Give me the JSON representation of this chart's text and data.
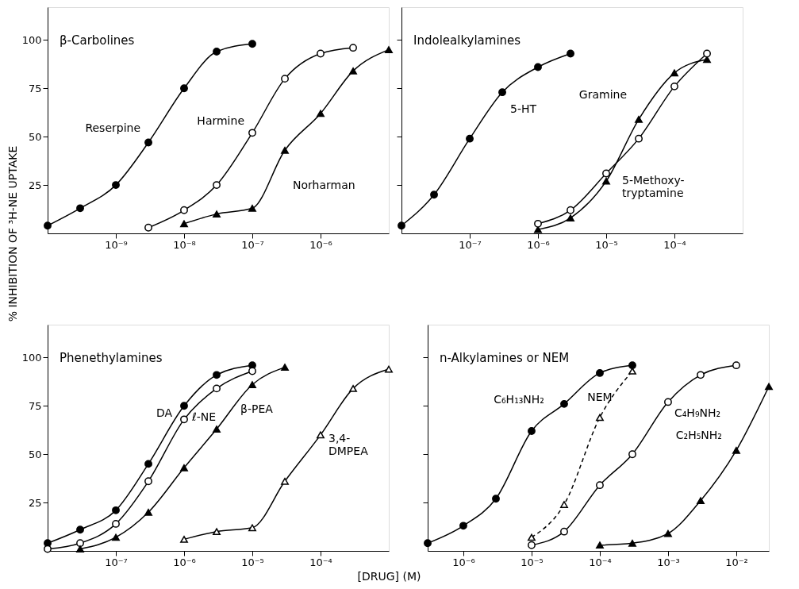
{
  "chart_data": [
    {
      "type": "line",
      "title": "β-Carbolines",
      "ylabel": "% INHIBITION OF ³H-NE UPTAKE",
      "log": "x",
      "xlim": [
        1e-10,
        1e-05
      ],
      "ylim": [
        0,
        117
      ],
      "xticks": [
        {
          "value": 1e-09,
          "label": "10⁻⁹"
        },
        {
          "value": 1e-08,
          "label": "10⁻⁸"
        },
        {
          "value": 1e-07,
          "label": "10⁻⁷"
        },
        {
          "value": 1e-06,
          "label": "10⁻⁶"
        }
      ],
      "yticks": [
        25,
        50,
        75,
        100
      ],
      "grid": false,
      "legend": false,
      "series": [
        {
          "name": "Reserpine",
          "color": "#000000",
          "marker": "circle",
          "x": [
            1e-10,
            3e-10,
            1e-09,
            3e-09,
            1e-08,
            3e-08,
            1e-07
          ],
          "values": [
            4,
            13,
            25,
            47,
            75,
            94,
            98
          ]
        },
        {
          "name": "Harmine",
          "color": "#000000",
          "marker": "circle",
          "x": [
            3e-09,
            1e-08,
            3e-08,
            1e-07,
            3e-07,
            1e-06,
            3e-06
          ],
          "values": [
            3,
            12,
            25,
            52,
            80,
            93,
            96
          ]
        },
        {
          "name": "Norharman",
          "color": "#000000",
          "marker": "triangle",
          "x": [
            1e-08,
            3e-08,
            1e-07,
            3e-07,
            1e-06,
            3e-06,
            1e-05
          ],
          "values": [
            5,
            10,
            13,
            43,
            62,
            84,
            95
          ]
        }
      ]
    },
    {
      "type": "line",
      "title": "Indolealkylamines",
      "log": "x",
      "xlim": [
        1e-08,
        0.001
      ],
      "ylim": [
        0,
        117
      ],
      "tick_labels": "x",
      "xticks": [
        {
          "value": 1e-07,
          "label": "10⁻⁷"
        },
        {
          "value": 1e-06,
          "label": "10⁻⁶"
        },
        {
          "value": 1e-05,
          "label": "10⁻⁵"
        },
        {
          "value": 0.0001,
          "label": "10⁻⁴"
        }
      ],
      "yticks": [
        25,
        50,
        75,
        100
      ],
      "grid": false,
      "legend": false,
      "series": [
        {
          "name": "5-HT",
          "color": "#000000",
          "marker": "circle",
          "x": [
            1e-08,
            3e-08,
            1e-07,
            3e-07,
            1e-06,
            3e-06
          ],
          "values": [
            4,
            20,
            49,
            73,
            86,
            93
          ]
        },
        {
          "name": "Gramine",
          "color": "#000000",
          "marker": "triangle",
          "x": [
            1e-06,
            3e-06,
            1e-05,
            3e-05,
            0.0001,
            0.0003
          ],
          "values": [
            2,
            8,
            27,
            59,
            83,
            90
          ]
        },
        {
          "name": "5-Methoxy-\ntryptamine",
          "color": "#000000",
          "marker": "circle",
          "x": [
            1e-06,
            3e-06,
            1e-05,
            3e-05,
            0.0001,
            0.0003
          ],
          "values": [
            5,
            12,
            31,
            49,
            76,
            93
          ]
        }
      ]
    },
    {
      "type": "line",
      "title": "Phenethylamines",
      "xlabel": "[DRUG] (M)",
      "log": "x",
      "xlim": [
        1e-08,
        0.001
      ],
      "ylim": [
        0,
        117
      ],
      "xticks": [
        {
          "value": 1e-07,
          "label": "10⁻⁷"
        },
        {
          "value": 1e-06,
          "label": "10⁻⁶"
        },
        {
          "value": 1e-05,
          "label": "10⁻⁵"
        },
        {
          "value": 0.0001,
          "label": "10⁻⁴"
        }
      ],
      "yticks": [
        25,
        50,
        75,
        100
      ],
      "grid": false,
      "legend": false,
      "series": [
        {
          "name": "DA",
          "color": "#000000",
          "marker": "circle",
          "x": [
            1e-08,
            3e-08,
            1e-07,
            3e-07,
            1e-06,
            3e-06,
            1e-05
          ],
          "values": [
            4,
            11,
            21,
            45,
            75,
            91,
            96
          ]
        },
        {
          "name": "ℓ-NE",
          "color": "#000000",
          "marker": "circle",
          "x": [
            1e-08,
            3e-08,
            1e-07,
            3e-07,
            1e-06,
            3e-06,
            1e-05
          ],
          "values": [
            1,
            4,
            14,
            36,
            68,
            84,
            93
          ]
        },
        {
          "name": "β-PEA",
          "color": "#000000",
          "marker": "triangle",
          "x": [
            3e-08,
            1e-07,
            3e-07,
            1e-06,
            3e-06,
            1e-05,
            3e-05
          ],
          "values": [
            1,
            7,
            20,
            43,
            63,
            86,
            95
          ]
        },
        {
          "name": "3,4-\nDMPEA",
          "color": "#000000",
          "marker": "triangle",
          "x": [
            1e-06,
            3e-06,
            1e-05,
            3e-05,
            0.0001,
            0.0003,
            0.001
          ],
          "values": [
            6,
            10,
            12,
            36,
            60,
            84,
            94
          ]
        }
      ]
    },
    {
      "type": "line",
      "title": "n-Alkylamines or NEM",
      "log": "x",
      "xlim": [
        3e-07,
        0.03
      ],
      "ylim": [
        0,
        117
      ],
      "tick_labels": "x",
      "xticks": [
        {
          "value": 1e-06,
          "label": "10⁻⁶"
        },
        {
          "value": 1e-05,
          "label": "10⁻⁵"
        },
        {
          "value": 0.0001,
          "label": "10⁻⁴"
        },
        {
          "value": 0.001,
          "label": "10⁻³"
        },
        {
          "value": 0.01,
          "label": "10⁻²"
        }
      ],
      "yticks": [
        25,
        50,
        75,
        100
      ],
      "grid": false,
      "legend": false,
      "series": [
        {
          "name": "C₆H₁₃NH₂",
          "color": "#000000",
          "marker": "circle",
          "x": [
            3e-07,
            1e-06,
            3e-06,
            1e-05,
            3e-05,
            0.0001,
            0.0003
          ],
          "values": [
            4,
            13,
            27,
            62,
            76,
            92,
            96
          ]
        },
        {
          "name": "NEM",
          "color": "#000000",
          "marker": "triangle",
          "line_style": "dashed",
          "x": [
            1e-05,
            3e-05,
            0.0001,
            0.0003
          ],
          "values": [
            7,
            24,
            69,
            93
          ]
        },
        {
          "name": "C₄H₉NH₂",
          "color": "#000000",
          "marker": "circle",
          "x": [
            1e-05,
            3e-05,
            0.0001,
            0.0003,
            0.001,
            0.003,
            0.01
          ],
          "values": [
            3,
            10,
            34,
            50,
            77,
            91,
            96
          ]
        },
        {
          "name": "C₂H₅NH₂",
          "color": "#000000",
          "marker": "triangle",
          "x": [
            0.0001,
            0.0003,
            0.001,
            0.003,
            0.01,
            0.03
          ],
          "values": [
            3,
            4,
            9,
            26,
            52,
            85
          ]
        }
      ]
    }
  ]
}
